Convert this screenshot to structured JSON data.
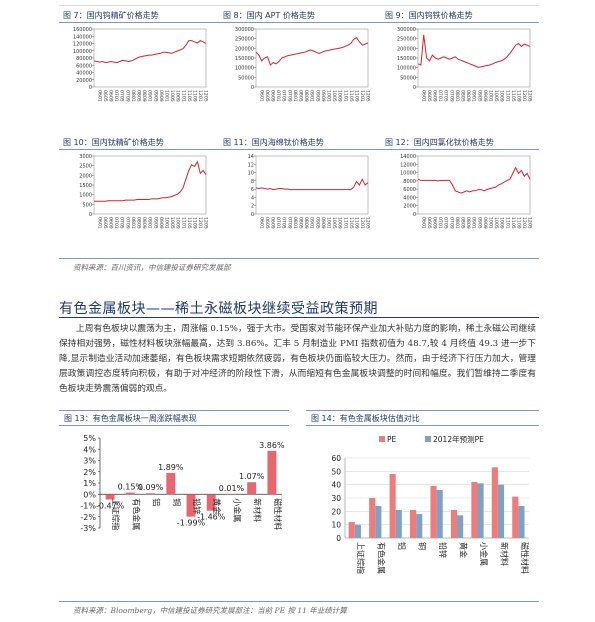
{
  "top_charts": [
    {
      "title": "图 7：国内钨精矿价格走势",
      "ylabels": [
        "160000",
        "140000",
        "120000",
        "100000",
        "80000",
        "60000",
        "40000",
        "20000",
        "0"
      ],
      "color": "#d9232d"
    },
    {
      "title": "图 8：国内 APT 价格走势",
      "ylabels": [
        "300000",
        "250000",
        "200000",
        "150000",
        "100000",
        "50000",
        "0"
      ],
      "color": "#d9232d"
    },
    {
      "title": "图 9：国内钨铁价格走势",
      "ylabels": [
        "300000",
        "250000",
        "200000",
        "150000",
        "100000",
        "50000",
        "0"
      ],
      "color": "#d9232d"
    },
    {
      "title": "图 10：国内钛精矿价格走势",
      "ylabels": [
        "3000",
        "2500",
        "2000",
        "1500",
        "1000",
        "500",
        "0"
      ],
      "color": "#d9232d"
    },
    {
      "title": "图 11：国内海绵钛价格走势",
      "ylabels": [
        "14",
        "12",
        "10",
        "8",
        "6",
        "4",
        "2",
        "0"
      ],
      "color": "#d9232d"
    },
    {
      "title": "图 12：国内四氯化钛价格走势",
      "ylabels": [
        "14000",
        "12000",
        "10000",
        "8000",
        "6000",
        "4000",
        "2000",
        "0"
      ],
      "color": "#d9232d"
    }
  ],
  "x_ticks": [
    "0601",
    "0605",
    "0609",
    "0701",
    "0705",
    "0709",
    "0801",
    "0805",
    "0809",
    "0901",
    "0905",
    "0909",
    "1001",
    "1005",
    "1009",
    "1101",
    "1105",
    "1109",
    "1201",
    "1205"
  ],
  "source_top": "资料来源：百川资讯，中信建投证券研究发展部",
  "section_title": "有色金属板块——稀土永磁板块继续受益政策预期",
  "paragraph": "上周有色板块以震荡为主，周涨幅 0.15%，强于大市。受国家对节能环保产业加大补贴力度的影响，稀土永磁公司继续保持相对强势，磁性材料板块涨幅最高，达到 3.86%。汇丰 5 月制造业 PMI 指数初值为 48.7,较 4 月终值 49.3 进一步下降,显示制造业活动加速萎缩，有色板块需求短期依然疲弱，有色板块仍面临较大压力。然而，由于经济下行压力加大，管理层政策调控态度转向积极，有助于对冲经济的阶段性下滑，从而缩短有色金属板块调整的时间和幅度。我们暂维持二季度有色板块走势震荡偏弱的观点。",
  "fig13": {
    "title": "图 13：有色金属板块一周涨跌幅表现"
  },
  "fig14": {
    "title": "图 14：有色金属板块估值对比"
  },
  "chart_data": [
    {
      "type": "bar",
      "categories": [
        "上证综指",
        "有色金属",
        "铝",
        "铜",
        "铅锌",
        "黄金",
        "小金属",
        "新材料",
        "磁性材料"
      ],
      "values": [
        -0.47,
        0.15,
        0.09,
        1.89,
        -1.99,
        -1.46,
        0.01,
        1.07,
        3.86
      ],
      "value_labels": [
        "-0.47%",
        "0.15%",
        "0.09%",
        "1.89%",
        "-1.99%",
        "-1.46%",
        "0.01%",
        "1.07%",
        "3.86%"
      ],
      "ylim": [
        -3,
        5
      ],
      "yticks": [
        "5%",
        "4%",
        "3%",
        "2%",
        "1%",
        "0%",
        "-1%",
        "-2%",
        "-3%"
      ],
      "color": "#e8666f"
    },
    {
      "type": "bar",
      "categories": [
        "上证综指",
        "有色金属",
        "铝",
        "铜",
        "铅锌",
        "黄金",
        "小金属",
        "新材料",
        "磁性材料"
      ],
      "series": [
        {
          "name": "PE",
          "values": [
            12,
            30,
            48,
            21,
            39,
            21,
            42,
            53,
            31
          ],
          "color": "#f07b7b"
        },
        {
          "name": "2012年预测PE",
          "values": [
            10,
            24,
            21,
            18,
            36,
            17,
            41,
            40,
            24
          ],
          "color": "#7ea1c4"
        }
      ],
      "ylim": [
        0,
        60
      ],
      "yticks": [
        "60",
        "50",
        "40",
        "30",
        "20",
        "10",
        "0"
      ]
    }
  ],
  "source_bottom": "资料来源：Bloomberg，中信建投证券研究发展部注：当前 PE 按 11 年业绩计算"
}
